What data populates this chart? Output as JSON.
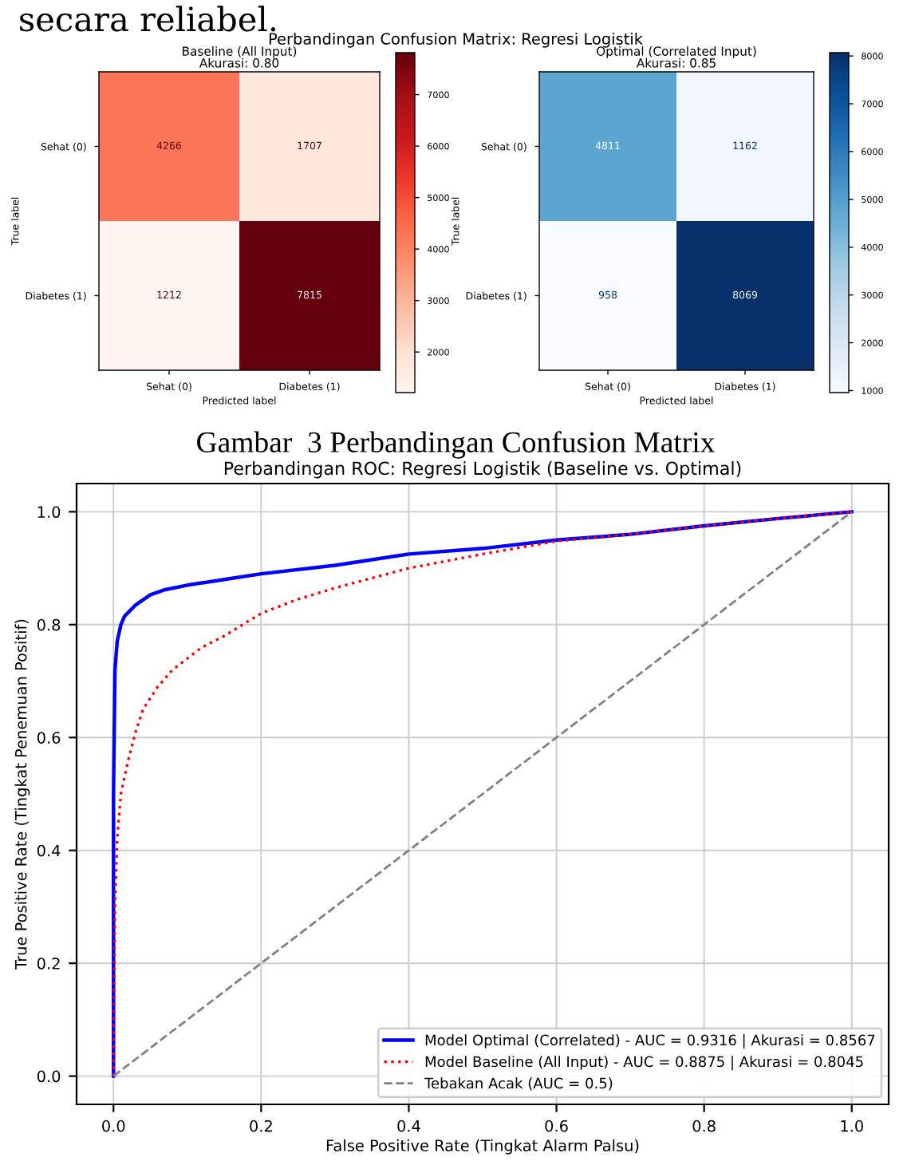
{
  "chart_data": [
    {
      "type": "heatmap",
      "title": "Baseline (All Input)\nAkurasi: 0.80",
      "xlabel": "Predicted label",
      "ylabel": "True label",
      "categories": [
        "Sehat (0)",
        "Diabetes (1)"
      ],
      "y_categories": [
        "Sehat (0)",
        "Diabetes (1)"
      ],
      "cells": [
        [
          4266,
          1707
        ],
        [
          1212,
          7815
        ]
      ],
      "data_labels": true,
      "clim": [
        1212,
        7815
      ],
      "cticks": [
        2000,
        3000,
        4000,
        5000,
        6000,
        7000
      ],
      "annotations": [
        "secara reliabel.",
        "Perbandingan Confusion Matrix: Regresi Logistik",
        "Gambar  3 Perbandingan Confusion Matrix"
      ]
    },
    {
      "type": "heatmap",
      "title": "Optimal (Correlated Input)\nAkurasi: 0.85",
      "xlabel": "Predicted label",
      "ylabel": "True label",
      "categories": [
        "Sehat (0)",
        "Diabetes (1)"
      ],
      "y_categories": [
        "Sehat (0)",
        "Diabetes (1)"
      ],
      "cells": [
        [
          4811,
          1162
        ],
        [
          958,
          8069
        ]
      ],
      "data_labels": true,
      "clim": [
        958,
        8069
      ],
      "cticks": [
        1000,
        2000,
        3000,
        4000,
        5000,
        6000,
        7000,
        8000
      ]
    },
    {
      "type": "line",
      "title": "Perbandingan ROC: Regresi Logistik (Baseline vs. Optimal)",
      "xlabel": "False Positive Rate (Tingkat Alarm Palsu)",
      "ylabel": "True Positive Rate (Tingkat Penemuan Positif)",
      "xlim": [
        -0.05,
        1.05
      ],
      "ylim": [
        -0.05,
        1.05
      ],
      "xticks": [
        {
          "value": 0,
          "label": "0.0"
        },
        0.2,
        0.4,
        0.6,
        0.8,
        {
          "value": 1,
          "label": "1.0"
        }
      ],
      "yticks": [
        {
          "value": 0,
          "label": "0.0"
        },
        0.2,
        0.4,
        0.6,
        0.8,
        {
          "value": 1,
          "label": "1.0"
        }
      ],
      "grid": true,
      "legend": "bottom right",
      "marker": "none",
      "series": [
        {
          "name": "Model Optimal (Correlated) - AUC = 0.9316 | Akurasi = 0.8567",
          "color": "#0000ff",
          "line_style": "solid",
          "x": [
            0,
            0,
            0.002,
            0.005,
            0.01,
            0.015,
            0.03,
            0.05,
            0.07,
            0.1,
            0.15,
            0.2,
            0.3,
            0.4,
            0.5,
            0.6,
            0.7,
            0.8,
            0.9,
            1
          ],
          "values": [
            0,
            0.5,
            0.72,
            0.77,
            0.8,
            0.815,
            0.835,
            0.853,
            0.862,
            0.87,
            0.88,
            0.89,
            0.905,
            0.925,
            0.935,
            0.95,
            0.96,
            0.975,
            0.988,
            1
          ]
        },
        {
          "name": "Model Baseline (All Input) - AUC = 0.8875 | Akurasi = 0.8045",
          "color": "#ff0000",
          "line_style": "dotted",
          "x": [
            0,
            0.002,
            0.005,
            0.01,
            0.02,
            0.03,
            0.04,
            0.06,
            0.08,
            0.1,
            0.12,
            0.15,
            0.2,
            0.25,
            0.3,
            0.4,
            0.5,
            0.6,
            0.7,
            0.8,
            0.9,
            1
          ],
          "values": [
            0,
            0.3,
            0.42,
            0.5,
            0.56,
            0.61,
            0.65,
            0.69,
            0.72,
            0.74,
            0.76,
            0.78,
            0.82,
            0.845,
            0.865,
            0.9,
            0.925,
            0.948,
            0.96,
            0.975,
            0.988,
            1
          ]
        },
        {
          "name": "Tebakan Acak (AUC = 0.5)",
          "color": "#808080",
          "line_style": "dashed",
          "x": [
            0,
            1
          ],
          "values": [
            0,
            1
          ]
        }
      ]
    }
  ]
}
